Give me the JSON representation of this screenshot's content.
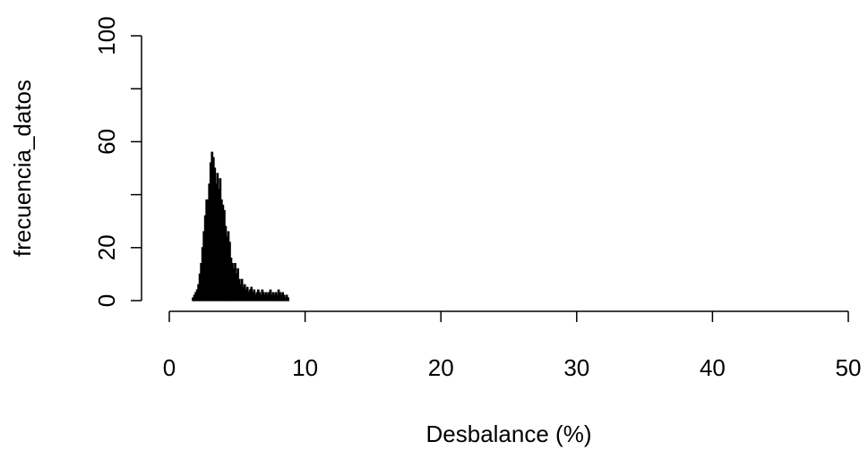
{
  "chart_data": {
    "type": "bar",
    "title": "",
    "xlabel": "Desbalance (%)",
    "ylabel": "frecuencia_datos",
    "xlim": [
      0,
      50
    ],
    "ylim": [
      0,
      100
    ],
    "x_ticks": [
      0,
      10,
      20,
      30,
      40,
      50
    ],
    "x_tick_labels": [
      "0",
      "10",
      "20",
      "30",
      "40",
      "50"
    ],
    "y_ticks": [
      0,
      20,
      40,
      60,
      80,
      100
    ],
    "y_tick_labels": [
      "0",
      "20",
      "",
      "60",
      "",
      "100"
    ],
    "bar_color": "#000000",
    "grid": false,
    "x": [
      1.7,
      1.8,
      1.9,
      2.0,
      2.1,
      2.2,
      2.3,
      2.4,
      2.5,
      2.6,
      2.7,
      2.8,
      2.9,
      3.0,
      3.1,
      3.2,
      3.3,
      3.4,
      3.5,
      3.6,
      3.7,
      3.8,
      3.9,
      4.0,
      4.1,
      4.2,
      4.3,
      4.4,
      4.5,
      4.6,
      4.7,
      4.8,
      4.9,
      5.0,
      5.1,
      5.2,
      5.3,
      5.4,
      5.5,
      5.6,
      5.7,
      5.8,
      5.9,
      6.0,
      6.1,
      6.2,
      6.3,
      6.4,
      6.5,
      6.6,
      6.7,
      6.8,
      6.9,
      7.0,
      7.1,
      7.2,
      7.3,
      7.4,
      7.5,
      7.6,
      7.7,
      7.8,
      7.9,
      8.0,
      8.1,
      8.2,
      8.3,
      8.4,
      8.5,
      8.6,
      8.7
    ],
    "values": [
      1,
      2,
      3,
      4,
      6,
      10,
      14,
      20,
      26,
      32,
      38,
      38,
      44,
      52,
      56,
      54,
      50,
      44,
      48,
      42,
      46,
      38,
      36,
      34,
      28,
      24,
      26,
      22,
      16,
      14,
      12,
      14,
      10,
      12,
      8,
      6,
      8,
      5,
      6,
      4,
      5,
      3,
      4,
      5,
      3,
      4,
      2,
      3,
      4,
      3,
      2,
      4,
      3,
      2,
      3,
      2,
      3,
      4,
      2,
      3,
      2,
      3,
      2,
      4,
      3,
      2,
      3,
      2,
      1,
      2,
      1
    ],
    "bin_width": 0.1
  }
}
